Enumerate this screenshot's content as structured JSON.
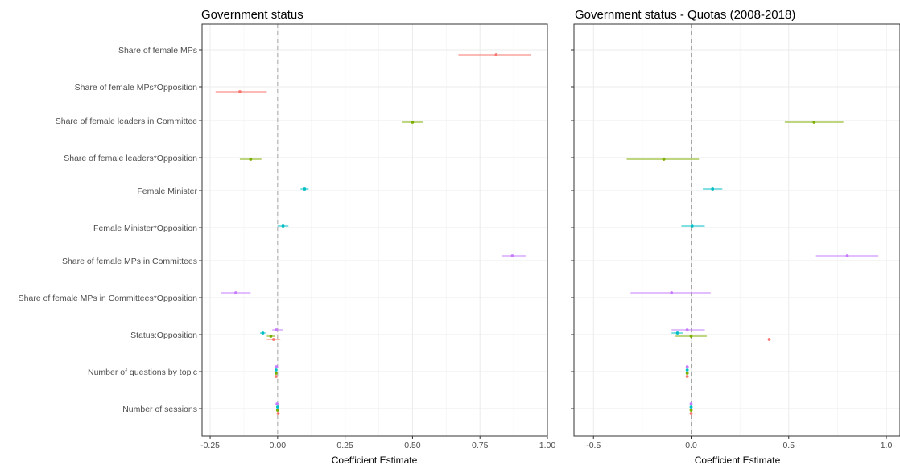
{
  "chart_data": [
    {
      "type": "scatter",
      "variant": "coefficient plot (point estimate with horizontal confidence interval)",
      "title": "Government status",
      "xlabel": "Coefficient Estimate",
      "ylabel": "",
      "xlim": [
        -0.28,
        1.0
      ],
      "xticks": [
        "-0.25",
        "0.00",
        "0.25",
        "0.50",
        "0.75",
        "1.00"
      ],
      "xtick_values": [
        -0.25,
        0,
        0.25,
        0.5,
        0.75,
        1.0
      ],
      "reference_line": 0,
      "grid": true,
      "legend": "none",
      "categories": [
        "Share of female MPs",
        "Share of female MPs*Opposition",
        "Share of female leaders in Committee",
        "Share of female leaders*Opposition",
        "Female Minister",
        "Female Minister*Opposition",
        "Share of female MPs in Committees",
        "Share of female MPs in Committees*Opposition",
        "Status:Opposition",
        "Number of questions by topic",
        "Number of sessions"
      ],
      "series": [
        {
          "color": "#F8766D",
          "points": [
            {
              "y": "Share of female MPs",
              "x": 0.81,
              "lo": 0.67,
              "hi": 0.94
            },
            {
              "y": "Share of female MPs*Opposition",
              "x": -0.14,
              "lo": -0.23,
              "hi": -0.04
            },
            {
              "y": "Status:Opposition",
              "x": -0.015,
              "lo": -0.04,
              "hi": 0.01
            },
            {
              "y": "Number of questions by topic",
              "x": -0.006,
              "lo": -0.008,
              "hi": -0.004
            },
            {
              "y": "Number of sessions",
              "x": 0.002,
              "lo": 0.0,
              "hi": 0.004
            }
          ]
        },
        {
          "color": "#7CAE00",
          "points": [
            {
              "y": "Share of female leaders in Committee",
              "x": 0.5,
              "lo": 0.46,
              "hi": 0.54
            },
            {
              "y": "Share of female leaders*Opposition",
              "x": -0.1,
              "lo": -0.14,
              "hi": -0.06
            },
            {
              "y": "Status:Opposition",
              "x": -0.025,
              "lo": -0.04,
              "hi": -0.01
            },
            {
              "y": "Number of questions by topic",
              "x": -0.006,
              "lo": -0.008,
              "hi": -0.004
            },
            {
              "y": "Number of sessions",
              "x": 0.0,
              "lo": -0.002,
              "hi": 0.002
            }
          ]
        },
        {
          "color": "#00BFC4",
          "points": [
            {
              "y": "Female Minister",
              "x": 0.1,
              "lo": 0.085,
              "hi": 0.115
            },
            {
              "y": "Female Minister*Opposition",
              "x": 0.02,
              "lo": 0.0,
              "hi": 0.04
            },
            {
              "y": "Status:Opposition",
              "x": -0.055,
              "lo": -0.065,
              "hi": -0.045
            },
            {
              "y": "Number of questions by topic",
              "x": -0.006,
              "lo": -0.008,
              "hi": -0.004
            },
            {
              "y": "Number of sessions",
              "x": 0.0,
              "lo": -0.002,
              "hi": 0.002
            }
          ]
        },
        {
          "color": "#C77CFF",
          "points": [
            {
              "y": "Share of female MPs in Committees",
              "x": 0.87,
              "lo": 0.83,
              "hi": 0.92
            },
            {
              "y": "Share of female MPs in Committees*Opposition",
              "x": -0.155,
              "lo": -0.21,
              "hi": -0.1
            },
            {
              "y": "Status:Opposition",
              "x": -0.005,
              "lo": -0.02,
              "hi": 0.02
            },
            {
              "y": "Number of questions by topic",
              "x": -0.004,
              "lo": -0.006,
              "hi": -0.002
            },
            {
              "y": "Number of sessions",
              "x": -0.002,
              "lo": -0.004,
              "hi": 0.0
            }
          ]
        }
      ]
    },
    {
      "type": "scatter",
      "variant": "coefficient plot (point estimate with horizontal confidence interval)",
      "title": "Government status - Quotas (2008-2018)",
      "xlabel": "Coefficient Estimate",
      "ylabel": "",
      "xlim": [
        -0.6,
        1.07
      ],
      "xticks": [
        "-0.5",
        "0.0",
        "0.5",
        "1.0"
      ],
      "xtick_values": [
        -0.5,
        0,
        0.5,
        1.0
      ],
      "reference_line": 0,
      "grid": true,
      "legend": "none",
      "categories": [
        "Share of female MPs",
        "Share of female MPs*Opposition",
        "Share of female leaders in Committee",
        "Share of female leaders*Opposition",
        "Female Minister",
        "Female Minister*Opposition",
        "Share of female MPs in Committees",
        "Share of female MPs in Committees*Opposition",
        "Status:Opposition",
        "Number of questions by topic",
        "Number of sessions"
      ],
      "series": [
        {
          "color": "#F8766D",
          "points": [
            {
              "y": "Status:Opposition",
              "x": 0.4,
              "lo": 0.4,
              "hi": 0.4
            },
            {
              "y": "Number of questions by topic",
              "x": -0.02,
              "lo": -0.025,
              "hi": -0.015
            },
            {
              "y": "Number of sessions",
              "x": 0.0,
              "lo": -0.004,
              "hi": 0.004
            }
          ]
        },
        {
          "color": "#7CAE00",
          "points": [
            {
              "y": "Share of female leaders in Committee",
              "x": 0.63,
              "lo": 0.48,
              "hi": 0.78
            },
            {
              "y": "Share of female leaders*Opposition",
              "x": -0.14,
              "lo": -0.33,
              "hi": 0.04
            },
            {
              "y": "Status:Opposition",
              "x": 0.0,
              "lo": -0.08,
              "hi": 0.08
            },
            {
              "y": "Number of questions by topic",
              "x": -0.02,
              "lo": -0.025,
              "hi": -0.015
            },
            {
              "y": "Number of sessions",
              "x": 0.0,
              "lo": -0.004,
              "hi": 0.004
            }
          ]
        },
        {
          "color": "#00BFC4",
          "points": [
            {
              "y": "Female Minister",
              "x": 0.11,
              "lo": 0.06,
              "hi": 0.16
            },
            {
              "y": "Female Minister*Opposition",
              "x": 0.005,
              "lo": -0.05,
              "hi": 0.07
            },
            {
              "y": "Status:Opposition",
              "x": -0.07,
              "lo": -0.1,
              "hi": -0.04
            },
            {
              "y": "Number of questions by topic",
              "x": -0.02,
              "lo": -0.025,
              "hi": -0.015
            },
            {
              "y": "Number of sessions",
              "x": 0.0,
              "lo": -0.004,
              "hi": 0.004
            }
          ]
        },
        {
          "color": "#C77CFF",
          "points": [
            {
              "y": "Share of female MPs in Committees",
              "x": 0.8,
              "lo": 0.64,
              "hi": 0.96
            },
            {
              "y": "Share of female MPs in Committees*Opposition",
              "x": -0.1,
              "lo": -0.31,
              "hi": 0.1
            },
            {
              "y": "Status:Opposition",
              "x": -0.02,
              "lo": -0.1,
              "hi": 0.07
            },
            {
              "y": "Number of questions by topic",
              "x": -0.02,
              "lo": -0.025,
              "hi": -0.015
            },
            {
              "y": "Number of sessions",
              "x": 0.0,
              "lo": -0.004,
              "hi": 0.004
            }
          ]
        }
      ]
    }
  ]
}
